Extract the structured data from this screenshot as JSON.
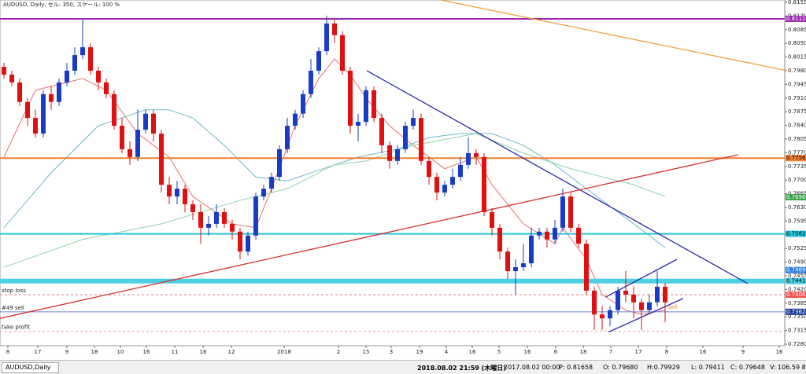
{
  "chart_data": {
    "type": "candlestick",
    "info": "AUDUSD, Daily, セル: 350, スケール: 100 %",
    "bull_color": "#1a3cc4",
    "bear_color": "#e01010",
    "xlim": [
      -0.5,
      99.2
    ],
    "ylim": [
      0.7276,
      0.8161
    ],
    "xticks": [
      {
        "value": 0.5,
        "label": "8"
      },
      {
        "value": 4.3,
        "label": "17"
      },
      {
        "value": 8,
        "label": "9"
      },
      {
        "value": 11.5,
        "label": "18"
      },
      {
        "value": 14.8,
        "label": "10"
      },
      {
        "value": 18.1,
        "label": "16"
      },
      {
        "value": 21.7,
        "label": "11"
      },
      {
        "value": 25.3,
        "label": "16"
      },
      {
        "value": 28.9,
        "label": "12"
      },
      {
        "value": 35.6,
        "label": "2018"
      },
      {
        "value": 42.5,
        "label": "2"
      },
      {
        "value": 46,
        "label": "15"
      },
      {
        "value": 49.2,
        "label": "3"
      },
      {
        "value": 52.8,
        "label": "19"
      },
      {
        "value": 56.2,
        "label": "4"
      },
      {
        "value": 59.5,
        "label": "16"
      },
      {
        "value": 62.9,
        "label": "5"
      },
      {
        "value": 66.5,
        "label": "16"
      },
      {
        "value": 70.1,
        "label": "6"
      },
      {
        "value": 73.6,
        "label": "18"
      },
      {
        "value": 77.1,
        "label": "7"
      },
      {
        "value": 80.6,
        "label": "17"
      },
      {
        "value": 84.2,
        "label": "8"
      },
      {
        "value": 88.8,
        "label": "16"
      },
      {
        "value": 93.9,
        "label": "9"
      },
      {
        "value": 98.5,
        "label": "16"
      }
    ],
    "yticks": [
      {
        "value": 0.8155,
        "label": "0.81550"
      },
      {
        "value": 0.812,
        "label": "0.81200"
      },
      {
        "value": 0.8085,
        "label": "0.80850"
      },
      {
        "value": 0.805,
        "label": "0.80500"
      },
      {
        "value": 0.8015,
        "label": "0.80150"
      },
      {
        "value": 0.798,
        "label": "0.79800"
      },
      {
        "value": 0.7945,
        "label": "0.79450"
      },
      {
        "value": 0.791,
        "label": "0.79100"
      },
      {
        "value": 0.7875,
        "label": "0.78750"
      },
      {
        "value": 0.784,
        "label": "0.78400"
      },
      {
        "value": 0.7805,
        "label": "0.78050"
      },
      {
        "value": 0.777,
        "label": "0.77700"
      },
      {
        "value": 0.7735,
        "label": "0.77350"
      },
      {
        "value": 0.77,
        "label": "0.77000"
      },
      {
        "value": 0.7665,
        "label": "0.76650"
      },
      {
        "value": 0.763,
        "label": "0.76300"
      },
      {
        "value": 0.7595,
        "label": "0.75950"
      },
      {
        "value": 0.756,
        "label": "0.75600"
      },
      {
        "value": 0.7525,
        "label": "0.75250"
      },
      {
        "value": 0.749,
        "label": "0.74900"
      },
      {
        "value": 0.7455,
        "label": "0.74550"
      },
      {
        "value": 0.742,
        "label": "0.74200"
      },
      {
        "value": 0.7385,
        "label": "0.73850"
      },
      {
        "value": 0.735,
        "label": "0.73500"
      },
      {
        "value": 0.7315,
        "label": "0.73150"
      },
      {
        "value": 0.728,
        "label": "0.72800"
      }
    ],
    "open": [
      0.799,
      0.797,
      0.795,
      0.79,
      0.7859,
      0.7819,
      0.792,
      0.79,
      0.795,
      0.798,
      0.802,
      0.804,
      0.798,
      0.795,
      0.792,
      0.7839,
      0.7779,
      0.7759,
      0.7829,
      0.787,
      0.7819,
      0.7688,
      0.7658,
      0.7678,
      0.7638,
      0.7618,
      0.7578,
      0.7588,
      0.7618,
      0.7588,
      0.7568,
      0.7517,
      0.7558,
      0.7658,
      0.7678,
      0.7708,
      0.7779,
      0.7839,
      0.787,
      0.792,
      0.798,
      0.803,
      0.8101,
      0.8071,
      0.798,
      0.7839,
      0.7849,
      0.793,
      0.7859,
      0.7789,
      0.7749,
      0.7779,
      0.7839,
      0.7859,
      0.7749,
      0.7708,
      0.7668,
      0.7688,
      0.7708,
      0.7739,
      0.7769,
      0.7759,
      0.7618,
      0.7578,
      0.7517,
      0.7467,
      0.7477,
      0.7487,
      0.7558,
      0.7568,
      0.7548,
      0.7578,
      0.7658,
      0.7578,
      0.7537,
      0.7417,
      0.7356,
      0.7346,
      0.7367,
      0.7417,
      0.7407,
      0.7387,
      0.7367,
      0.7387,
      0.7427
    ],
    "high": [
      0.8,
      0.798,
      0.796,
      0.791,
      0.788,
      0.793,
      0.794,
      0.796,
      0.8,
      0.804,
      0.8111,
      0.8051,
      0.799,
      0.796,
      0.793,
      0.7859,
      0.7799,
      0.788,
      0.788,
      0.788,
      0.7829,
      0.7708,
      0.7698,
      0.7688,
      0.7648,
      0.7638,
      0.7608,
      0.7638,
      0.7628,
      0.7598,
      0.7578,
      0.7568,
      0.7668,
      0.7688,
      0.7719,
      0.7789,
      0.7859,
      0.788,
      0.793,
      0.801,
      0.804,
      0.8121,
      0.8111,
      0.8081,
      0.799,
      0.787,
      0.794,
      0.794,
      0.787,
      0.7799,
      0.7789,
      0.7849,
      0.788,
      0.787,
      0.7759,
      0.7719,
      0.7698,
      0.7729,
      0.7759,
      0.7809,
      0.7779,
      0.7769,
      0.7628,
      0.7588,
      0.7527,
      0.7497,
      0.7537,
      0.7578,
      0.7578,
      0.7578,
      0.7598,
      0.7678,
      0.7668,
      0.7588,
      0.7548,
      0.7427,
      0.7377,
      0.7377,
      0.7427,
      0.7467,
      0.7427,
      0.7397,
      0.7407,
      0.7467,
      0.7437
    ],
    "low": [
      0.796,
      0.794,
      0.789,
      0.7839,
      0.7809,
      0.7809,
      0.788,
      0.789,
      0.794,
      0.797,
      0.801,
      0.797,
      0.793,
      0.791,
      0.7829,
      0.7769,
      0.7739,
      0.7749,
      0.7819,
      0.7799,
      0.7668,
      0.7638,
      0.7638,
      0.7618,
      0.7598,
      0.7537,
      0.7558,
      0.7578,
      0.7578,
      0.7548,
      0.7497,
      0.7507,
      0.7548,
      0.7648,
      0.7668,
      0.7698,
      0.7769,
      0.7829,
      0.7859,
      0.791,
      0.797,
      0.802,
      0.8051,
      0.797,
      0.7819,
      0.7799,
      0.7839,
      0.7849,
      0.7769,
      0.7729,
      0.7739,
      0.7769,
      0.7829,
      0.7739,
      0.7688,
      0.7648,
      0.7658,
      0.7678,
      0.7698,
      0.7729,
      0.7739,
      0.7608,
      0.7558,
      0.7497,
      0.7447,
      0.7407,
      0.7467,
      0.7477,
      0.7548,
      0.7527,
      0.7537,
      0.7568,
      0.7568,
      0.7527,
      0.7407,
      0.7316,
      0.7316,
      0.7326,
      0.7356,
      0.7387,
      0.7346,
      0.7316,
      0.7356,
      0.7377,
      0.7336
    ],
    "close": [
      0.797,
      0.795,
      0.79,
      0.7859,
      0.7819,
      0.792,
      0.79,
      0.795,
      0.798,
      0.802,
      0.804,
      0.798,
      0.795,
      0.792,
      0.7839,
      0.7779,
      0.7759,
      0.7829,
      0.787,
      0.7819,
      0.7688,
      0.7658,
      0.7678,
      0.7638,
      0.7618,
      0.7578,
      0.7588,
      0.7618,
      0.7588,
      0.7568,
      0.7517,
      0.7558,
      0.7658,
      0.7678,
      0.7708,
      0.7779,
      0.7839,
      0.787,
      0.792,
      0.798,
      0.803,
      0.8101,
      0.8071,
      0.798,
      0.7839,
      0.7849,
      0.793,
      0.7859,
      0.7789,
      0.7749,
      0.7779,
      0.7839,
      0.7859,
      0.7749,
      0.7708,
      0.7668,
      0.7688,
      0.7708,
      0.7739,
      0.7769,
      0.7759,
      0.7618,
      0.7578,
      0.7517,
      0.7467,
      0.7477,
      0.7487,
      0.7558,
      0.7568,
      0.7548,
      0.7578,
      0.7658,
      0.7578,
      0.7537,
      0.7417,
      0.7356,
      0.7346,
      0.7367,
      0.7417,
      0.7407,
      0.7387,
      0.7367,
      0.7387,
      0.7427,
      0.7387
    ],
    "moving_averages": [
      {
        "color": "#e87070",
        "x": [
          0,
          4,
          10,
          13,
          17,
          21,
          24,
          29,
          32,
          34,
          37,
          40,
          42,
          44,
          46,
          49,
          52,
          56,
          60,
          62,
          66,
          70,
          71,
          74,
          76,
          79,
          81,
          84
        ],
        "values": [
          0.7759,
          0.793,
          0.796,
          0.793,
          0.7819,
          0.7759,
          0.7658,
          0.7588,
          0.7578,
          0.7678,
          0.7839,
          0.796,
          0.801,
          0.797,
          0.791,
          0.7839,
          0.7789,
          0.7729,
          0.7759,
          0.7688,
          0.7588,
          0.7537,
          0.7578,
          0.7497,
          0.7407,
          0.7367,
          0.7356,
          0.7367
        ]
      },
      {
        "color": "#6fb8c8",
        "x": [
          0,
          6,
          12,
          18,
          21,
          24,
          28,
          32,
          36,
          42,
          45,
          50,
          54,
          58,
          62,
          66,
          70,
          74,
          78,
          82,
          84
        ],
        "values": [
          0.7578,
          0.7719,
          0.7839,
          0.788,
          0.788,
          0.7859,
          0.7789,
          0.7708,
          0.7698,
          0.7739,
          0.7759,
          0.7779,
          0.7809,
          0.7819,
          0.7819,
          0.7789,
          0.7739,
          0.7678,
          0.7618,
          0.7558,
          0.7527
        ]
      },
      {
        "color": "#8fd3a8",
        "x": [
          0,
          10,
          20,
          30,
          36,
          42,
          46,
          52,
          60,
          66,
          72,
          80,
          84
        ],
        "values": [
          0.7477,
          0.7548,
          0.7588,
          0.7648,
          0.7678,
          0.7739,
          0.7749,
          0.7789,
          0.7819,
          0.7769,
          0.7729,
          0.7688,
          0.7658
        ]
      }
    ],
    "trendlines": [
      {
        "color": "#2a2aa8",
        "x": [
          46.1,
          94.5
        ],
        "values": [
          0.798,
          0.7435
        ]
      },
      {
        "color": "#f0a040",
        "x": [
          55.5,
          99.5
        ],
        "values": [
          0.8161,
          0.798
        ]
      },
      {
        "color": "#d83030",
        "x": [
          -0.5,
          93.3
        ],
        "values": [
          0.7346,
          0.7765
        ]
      },
      {
        "color": "#2a2aa8",
        "x": [
          76.5,
          85.5
        ],
        "values": [
          0.7401,
          0.7497
        ]
      },
      {
        "color": "#2a2aa8",
        "x": [
          76.8,
          86.3
        ],
        "values": [
          0.7311,
          0.7397
        ]
      }
    ],
    "levels": [
      {
        "value": 0.81128,
        "color": "#9c27b0",
        "width": 2,
        "dash": false
      },
      {
        "value": 0.77563,
        "color": "#f08030",
        "width": 2,
        "dash": false
      },
      {
        "value": 0.75624,
        "color": "#26c6da",
        "width": 2,
        "dash": false
      },
      {
        "value": 0.74415,
        "color": "#4dd0e1",
        "width": 6,
        "dash": false
      },
      {
        "value": 0.74065,
        "color": "#e57373",
        "width": 1,
        "dash": true,
        "text": "stop loss"
      },
      {
        "value": 0.73628,
        "color": "#6f86d8",
        "width": 1,
        "dash": false,
        "text": "#49 sell"
      },
      {
        "value": 0.7313,
        "color": "#e0a0a0",
        "width": 1,
        "dash": true,
        "text": "take profit"
      }
    ],
    "price_tags": [
      {
        "value": 0.81128,
        "color": "#9c27b0",
        "text_color": "#ffffff"
      },
      {
        "value": 0.77563,
        "color": "#f08030",
        "text_color": "#000000"
      },
      {
        "value": 0.76562,
        "color": "#3fa34d",
        "text_color": "#ffffff"
      },
      {
        "value": 0.75624,
        "color": "#26c6da",
        "text_color": "#000000"
      },
      {
        "value": 0.74697,
        "color": "#2f7de1",
        "text_color": "#ffffff"
      },
      {
        "value": 0.74415,
        "color": "#4dd0e1",
        "text_color": "#000000"
      },
      {
        "value": 0.74065,
        "color": "#ef5350",
        "text_color": "#ffffff"
      },
      {
        "value": 0.73628,
        "color": "#1f3a93",
        "text_color": "#ffffff"
      }
    ],
    "annotation": {
      "text": "sell",
      "color": "#f08030"
    }
  },
  "status_bar": {
    "tab": "AUDUSD,Daily",
    "time": "2018.08.02 21:59 (木曜日)",
    "date": "2017.08.02 00:00",
    "price": "P: 0.81658",
    "open": "O: 0.79680",
    "high": "H:0.79929",
    "low": "L: 0.79411",
    "close": "C: 0.79648",
    "volume": "V: 106.59 8"
  }
}
